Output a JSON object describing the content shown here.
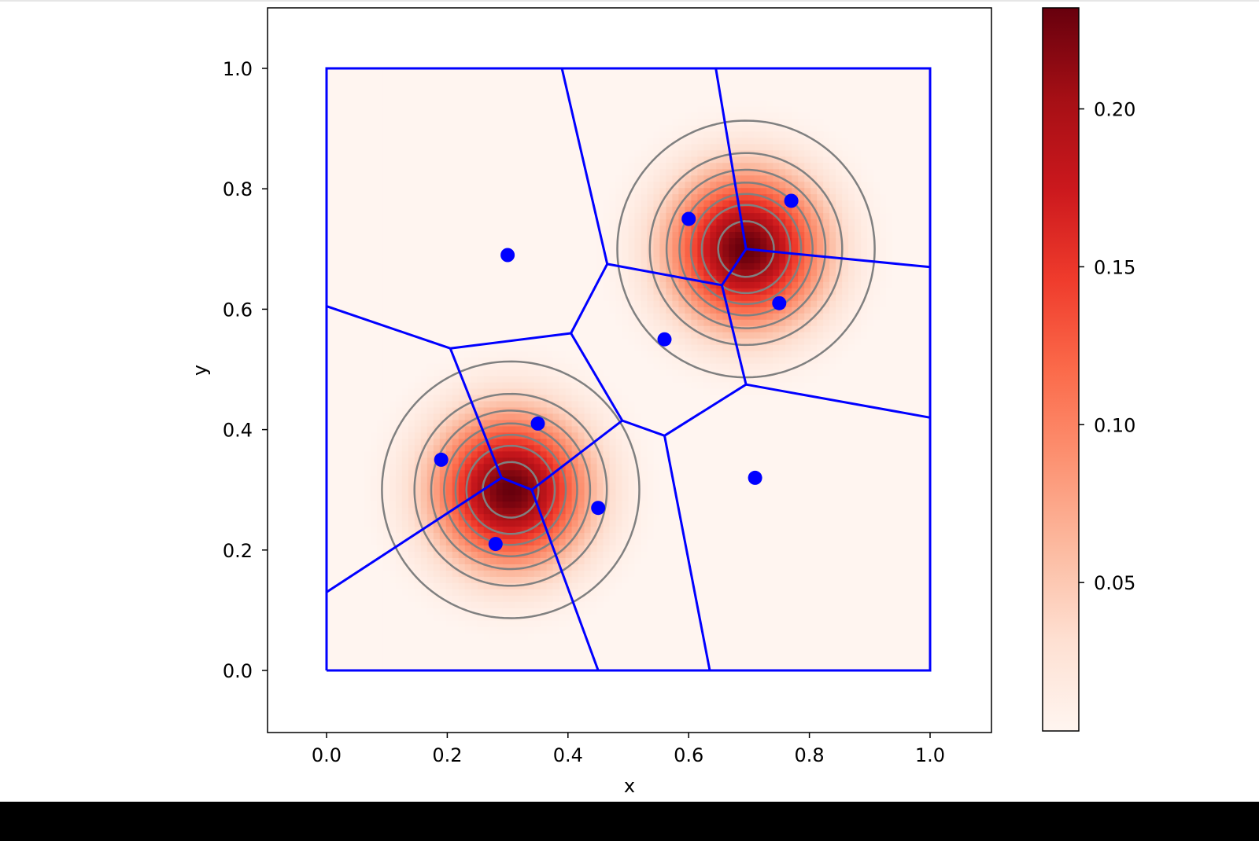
{
  "chart_data": {
    "type": "heatmap",
    "title": "",
    "xlabel": "x",
    "ylabel": "y",
    "xlim": [
      -0.1,
      1.1
    ],
    "ylim": [
      -0.1,
      1.1
    ],
    "x_ticks": [
      "0.0",
      "0.2",
      "0.4",
      "0.6",
      "0.8",
      "1.0"
    ],
    "y_ticks": [
      "0.0",
      "0.2",
      "0.4",
      "0.6",
      "0.8",
      "1.0"
    ],
    "x_tick_values": [
      0.0,
      0.2,
      0.4,
      0.6,
      0.8,
      1.0
    ],
    "y_tick_values": [
      0.0,
      0.2,
      0.4,
      0.6,
      0.8,
      1.0
    ],
    "colormap": "Reds",
    "colorbar": {
      "range": [
        0.003,
        0.232
      ],
      "tick_values": [
        0.05,
        0.1,
        0.15,
        0.2
      ],
      "tick_labels": [
        "0.05",
        "0.10",
        "0.15",
        "0.20"
      ]
    },
    "density_components": [
      {
        "center": [
          0.305,
          0.3
        ],
        "sigma": 0.085,
        "peak": 0.232
      },
      {
        "center": [
          0.695,
          0.7
        ],
        "sigma": 0.085,
        "peak": 0.232
      }
    ],
    "contour_levels": [
      0.01,
      0.04,
      0.07,
      0.1,
      0.13,
      0.16,
      0.2
    ],
    "contour_color": "#808080",
    "points": [
      [
        0.3,
        0.69
      ],
      [
        0.19,
        0.35
      ],
      [
        0.35,
        0.41
      ],
      [
        0.45,
        0.27
      ],
      [
        0.28,
        0.21
      ],
      [
        0.6,
        0.75
      ],
      [
        0.77,
        0.78
      ],
      [
        0.75,
        0.61
      ],
      [
        0.56,
        0.55
      ],
      [
        0.71,
        0.32
      ]
    ],
    "point_color": "#0000ff",
    "voronoi": {
      "color": "#0000ff",
      "boundary": [
        [
          0,
          0
        ],
        [
          1,
          0
        ],
        [
          1,
          1
        ],
        [
          0,
          1
        ],
        [
          0,
          0
        ]
      ],
      "edges": [
        [
          [
            0.0,
            0.605
          ],
          [
            0.205,
            0.535
          ]
        ],
        [
          [
            0.205,
            0.535
          ],
          [
            0.405,
            0.56
          ]
        ],
        [
          [
            0.205,
            0.535
          ],
          [
            0.29,
            0.32
          ]
        ],
        [
          [
            0.29,
            0.32
          ],
          [
            0.0,
            0.13
          ]
        ],
        [
          [
            0.29,
            0.32
          ],
          [
            0.34,
            0.3
          ]
        ],
        [
          [
            0.34,
            0.3
          ],
          [
            0.45,
            0.0
          ]
        ],
        [
          [
            0.34,
            0.3
          ],
          [
            0.49,
            0.415
          ]
        ],
        [
          [
            0.49,
            0.415
          ],
          [
            0.405,
            0.56
          ]
        ],
        [
          [
            0.49,
            0.415
          ],
          [
            0.56,
            0.39
          ]
        ],
        [
          [
            0.56,
            0.39
          ],
          [
            0.635,
            0.0
          ]
        ],
        [
          [
            0.56,
            0.39
          ],
          [
            0.695,
            0.475
          ]
        ],
        [
          [
            0.695,
            0.475
          ],
          [
            1.0,
            0.42
          ]
        ],
        [
          [
            0.695,
            0.475
          ],
          [
            0.655,
            0.64
          ]
        ],
        [
          [
            0.655,
            0.64
          ],
          [
            0.465,
            0.675
          ]
        ],
        [
          [
            0.465,
            0.675
          ],
          [
            0.405,
            0.56
          ]
        ],
        [
          [
            0.465,
            0.675
          ],
          [
            0.39,
            1.0
          ]
        ],
        [
          [
            0.655,
            0.64
          ],
          [
            0.695,
            0.7
          ]
        ],
        [
          [
            0.695,
            0.7
          ],
          [
            0.645,
            1.0
          ]
        ],
        [
          [
            0.695,
            0.7
          ],
          [
            1.0,
            0.67
          ]
        ]
      ]
    }
  }
}
